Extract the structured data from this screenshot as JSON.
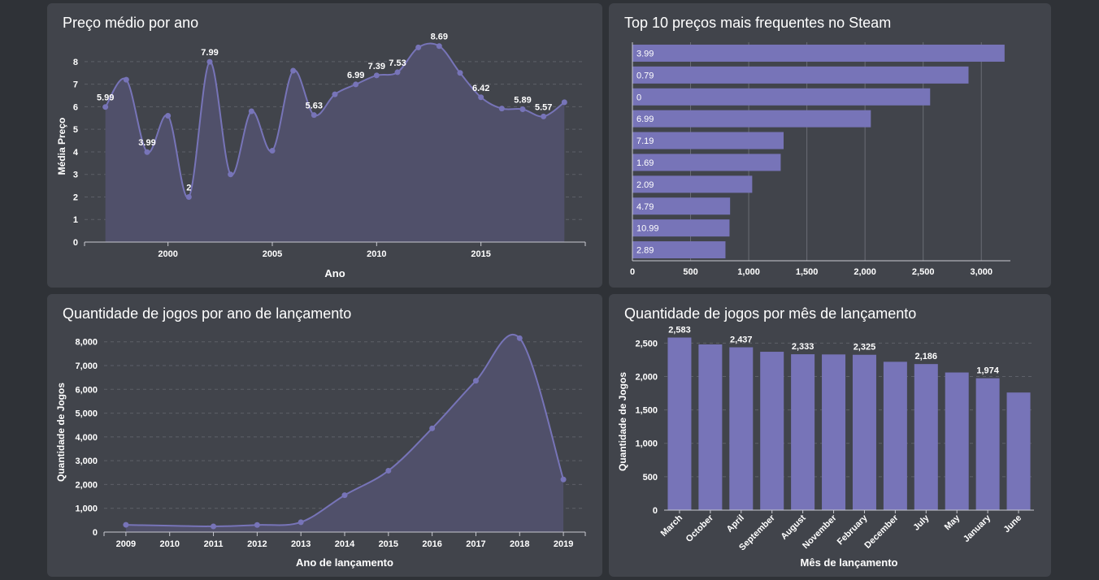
{
  "chart_data": [
    {
      "id": "avg-price",
      "type": "area",
      "title": "Preço médio por ano",
      "xlabel": "Ano",
      "ylabel": "Média Preço",
      "xlim": [
        1996,
        2020
      ],
      "ylim": [
        0,
        8.5
      ],
      "x_ticks": [
        2000,
        2005,
        2010,
        2015
      ],
      "y_ticks": [
        0,
        1,
        2,
        3,
        4,
        5,
        6,
        7,
        8
      ],
      "x": [
        1997,
        1998,
        1999,
        2000,
        2001,
        2002,
        2003,
        2004,
        2005,
        2006,
        2007,
        2008,
        2009,
        2010,
        2011,
        2012,
        2013,
        2014,
        2015,
        2016,
        2017,
        2018,
        2019
      ],
      "values": [
        5.99,
        7.2,
        3.99,
        5.6,
        2,
        7.99,
        3,
        5.8,
        4.05,
        7.6,
        5.63,
        6.55,
        6.99,
        7.39,
        7.53,
        8.63,
        8.69,
        7.5,
        6.42,
        5.92,
        5.89,
        5.57,
        6.2
      ],
      "labels": [
        "5.99",
        "",
        "3.99",
        "",
        "2",
        "7.99",
        "",
        "",
        "",
        "",
        "5.63",
        "",
        "6.99",
        "7.39",
        "7.53",
        "",
        "8.69",
        "",
        "6.42",
        "",
        "5.89",
        "5.57",
        ""
      ],
      "grid": "horizontal dashed",
      "color": "#7774b8"
    },
    {
      "id": "top-prices",
      "type": "bar",
      "orientation": "horizontal",
      "title": "Top 10 preços mais frequentes no Steam",
      "categories": [
        "3.99",
        "0.79",
        "0",
        "6.99",
        "7.19",
        "1.69",
        "2.09",
        "4.79",
        "10.99",
        "2.89"
      ],
      "values": [
        3200,
        2890,
        2560,
        2050,
        1300,
        1275,
        1030,
        840,
        835,
        800
      ],
      "xlim": [
        0,
        3250
      ],
      "x_ticks": [
        0,
        500,
        1000,
        1500,
        2000,
        2500,
        3000
      ],
      "x_tick_labels": [
        "0",
        "500",
        "1,000",
        "1,500",
        "2,000",
        "2,500",
        "3,000"
      ],
      "grid": "vertical",
      "color": "#7774b8"
    },
    {
      "id": "games-per-year",
      "type": "area",
      "title": "Quantidade de jogos por ano de lançamento",
      "xlabel": "Ano de lançamento",
      "ylabel": "Quantidade de Jogos",
      "categories": [
        "2009",
        "2010",
        "2011",
        "2012",
        "2013",
        "2014",
        "2015",
        "2016",
        "2017",
        "2018",
        "2019"
      ],
      "values": [
        305,
        null,
        240,
        300,
        415,
        1550,
        2580,
        4360,
        6360,
        8150,
        2210
      ],
      "ylim": [
        0,
        8400
      ],
      "y_ticks": [
        0,
        1000,
        2000,
        3000,
        4000,
        5000,
        6000,
        7000,
        8000
      ],
      "y_tick_labels": [
        "0",
        "1,000",
        "2,000",
        "3,000",
        "4,000",
        "5,000",
        "6,000",
        "7,000",
        "8,000"
      ],
      "grid": "horizontal dashed",
      "color": "#7774b8"
    },
    {
      "id": "games-per-month",
      "type": "bar",
      "title": "Quantidade de jogos por mês de lançamento",
      "xlabel": "Mês de lançamento",
      "ylabel": "Quantidade de Jogos",
      "categories": [
        "March",
        "October",
        "April",
        "September",
        "August",
        "November",
        "February",
        "December",
        "July",
        "May",
        "January",
        "June"
      ],
      "values": [
        2583,
        2480,
        2437,
        2370,
        2333,
        2330,
        2325,
        2220,
        2186,
        2060,
        1974,
        1760
      ],
      "labels": [
        "2,583",
        "",
        "2,437",
        "",
        "2,333",
        "",
        "2,325",
        "",
        "2,186",
        "",
        "1,974",
        ""
      ],
      "ylim": [
        0,
        2650
      ],
      "y_ticks": [
        0,
        500,
        1000,
        1500,
        2000,
        2500
      ],
      "y_tick_labels": [
        "0",
        "500",
        "1,000",
        "1,500",
        "2,000",
        "2,500"
      ],
      "grid": "horizontal dashed",
      "color": "#7774b8"
    }
  ]
}
